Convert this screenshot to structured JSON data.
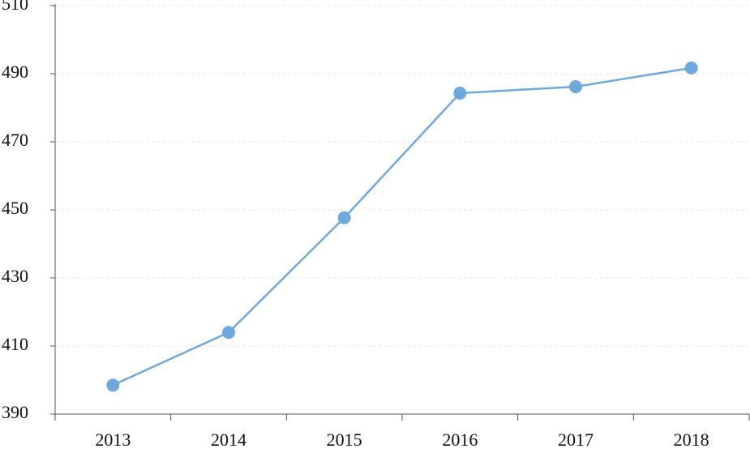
{
  "chart_data": {
    "type": "line",
    "categories": [
      "2013",
      "2014",
      "2015",
      "2016",
      "2017",
      "2018"
    ],
    "series": [
      {
        "color": "#6fa8dc",
        "values": [
          398.5,
          414,
          447.7,
          484.3,
          486.2,
          491.7
        ]
      }
    ],
    "ylim": [
      390,
      510
    ],
    "yticks": [
      390,
      410,
      430,
      450,
      470,
      490,
      510
    ],
    "grid": true
  }
}
